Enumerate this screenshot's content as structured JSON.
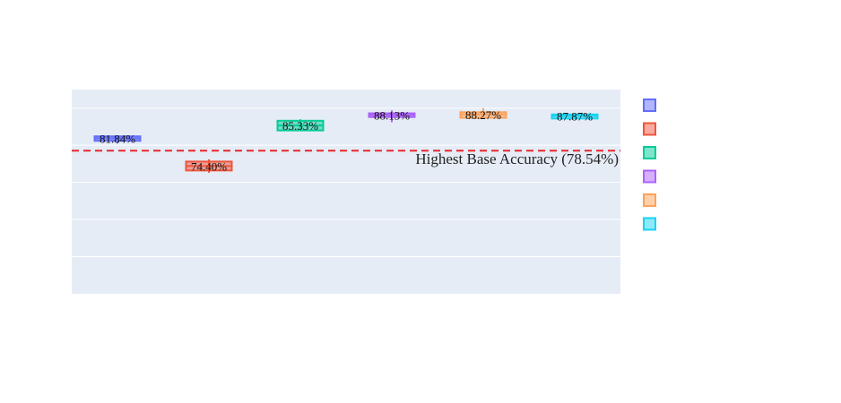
{
  "chart_data": {
    "type": "box",
    "title": "",
    "xlabel": "",
    "ylabel": "",
    "series": [
      {
        "name": "",
        "color": "#636efa",
        "label": "81.84%",
        "q1": 81.2,
        "q3": 82.4,
        "median": 81.84,
        "low": 80.5,
        "high": 82.4
      },
      {
        "name": "",
        "color": "#ef553b",
        "label": "74.40%",
        "q1": 73.2,
        "q3": 75.6,
        "median": 74.4,
        "low": 72.6,
        "high": 76.2
      },
      {
        "name": "",
        "color": "#00cc96",
        "label": "85.33%",
        "q1": 84.0,
        "q3": 86.6,
        "median": 85.33,
        "low": 83.8,
        "high": 87.0
      },
      {
        "name": "",
        "color": "#ab63fa",
        "label": "88.13%",
        "q1": 87.6,
        "q3": 88.6,
        "median": 88.13,
        "low": 86.2,
        "high": 89.4
      },
      {
        "name": "",
        "color": "#ffa15a",
        "label": "88.27%",
        "q1": 87.4,
        "q3": 88.9,
        "median": 88.27,
        "low": 87.4,
        "high": 90.0
      },
      {
        "name": "",
        "color": "#19d3f3",
        "label": "87.87%",
        "q1": 87.2,
        "q3": 88.3,
        "median": 87.87,
        "low": 87.2,
        "high": 88.3
      }
    ],
    "reference_line": {
      "value": 78.54,
      "label": "Highest Base Accuracy (78.54%)",
      "color": "#e8262a",
      "style": "dashed"
    },
    "ylim": [
      40,
      95
    ],
    "grid": true,
    "legend": {
      "placement": "right"
    }
  }
}
